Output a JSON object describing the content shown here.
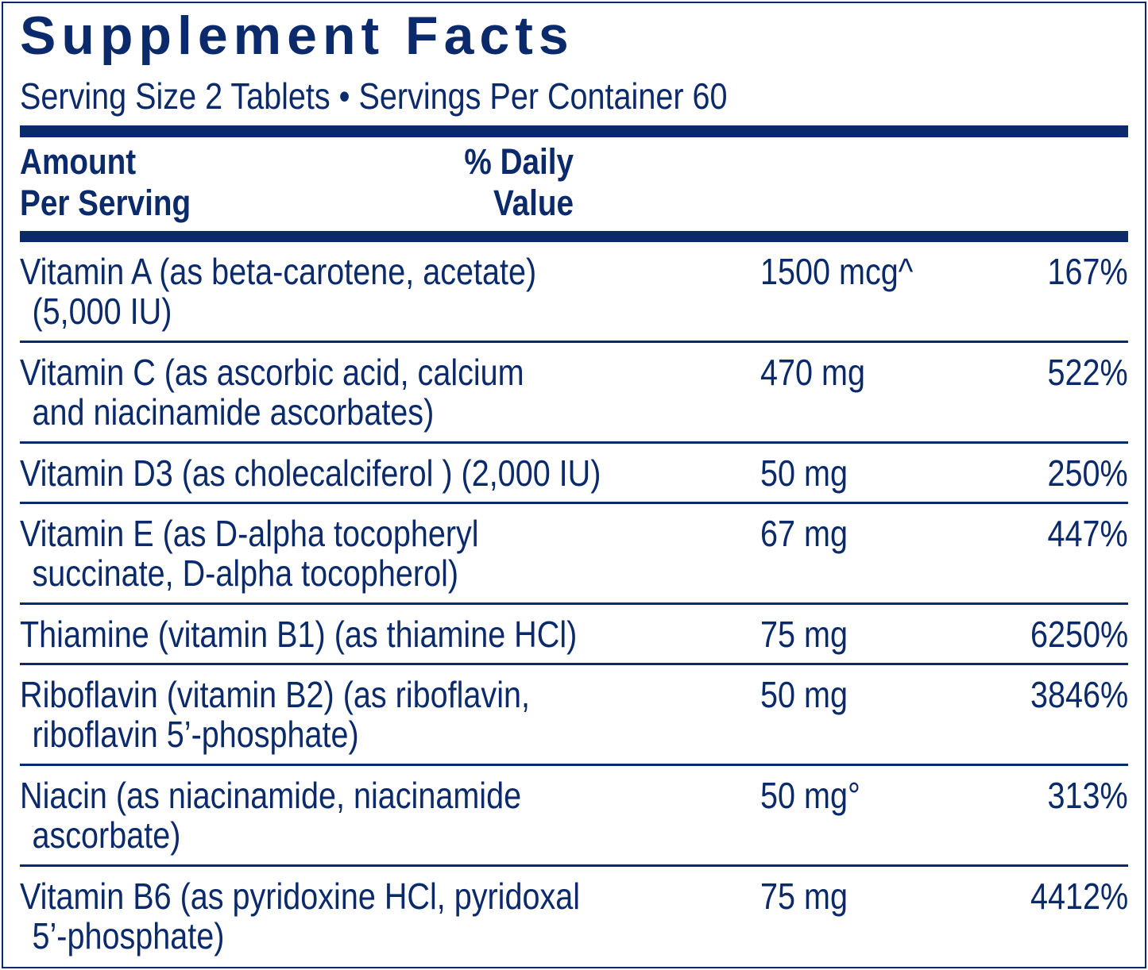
{
  "title": "Supplement Facts",
  "serving": "Serving Size 2 Tablets • Servings Per Container 60",
  "header": {
    "amount_line1": "Amount",
    "amount_line2": "Per Serving",
    "dv_line1": "% Daily",
    "dv_line2": "Value"
  },
  "color": "#0b2a6b",
  "rows": [
    {
      "name": [
        "Vitamin A (as beta-carotene, acetate)",
        "(5,000 IU)"
      ],
      "amount": "1500 mcg^",
      "dv": "167%"
    },
    {
      "name": [
        "Vitamin C (as ascorbic acid, calcium",
        "and niacinamide ascorbates)"
      ],
      "amount": "470 mg",
      "dv": "522%"
    },
    {
      "name": [
        "Vitamin D3 (as cholecalciferol ) (2,000 IU)"
      ],
      "amount": "50 mg",
      "dv": "250%"
    },
    {
      "name": [
        "Vitamin E (as D-alpha tocopheryl",
        "succinate, D-alpha tocopherol)"
      ],
      "amount": "67 mg",
      "dv": "447%"
    },
    {
      "name": [
        "Thiamine (vitamin B1) (as thiamine HCl)"
      ],
      "amount": "75 mg",
      "dv": "6250%"
    },
    {
      "name": [
        "Riboflavin (vitamin B2) (as riboflavin,",
        "riboflavin 5’-phosphate)"
      ],
      "amount": "50 mg",
      "dv": "3846%"
    },
    {
      "name": [
        "Niacin (as niacinamide, niacinamide",
        "ascorbate)"
      ],
      "amount": "50 mg°",
      "dv": "313%"
    },
    {
      "name": [
        "Vitamin B6 (as pyridoxine HCl, pyridoxal",
        "5’-phosphate)"
      ],
      "amount": "75 mg",
      "dv": "4412%"
    }
  ]
}
